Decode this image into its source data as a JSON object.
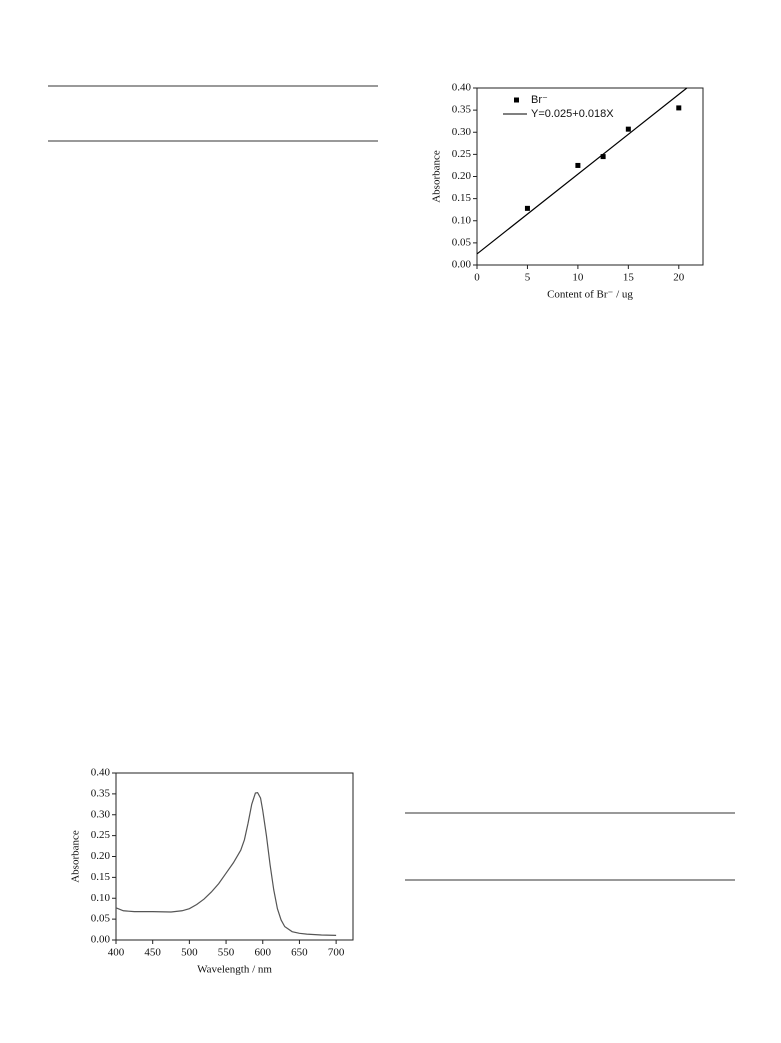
{
  "chart_data": [
    {
      "type": "scatter",
      "xlabel": "Content of Br⁻ / ug",
      "ylabel": "Absorbance",
      "xlim": [
        0,
        22.4
      ],
      "ylim": [
        0,
        0.4
      ],
      "xticks": [
        0,
        5,
        10,
        15,
        20
      ],
      "yticks": [
        {
          "value": 0,
          "label": "0.00"
        },
        {
          "value": 0.05,
          "label": "0.05"
        },
        {
          "value": 0.1,
          "label": "0.10"
        },
        {
          "value": 0.15,
          "label": "0.15"
        },
        {
          "value": 0.2,
          "label": "0.20"
        },
        {
          "value": 0.25,
          "label": "0.25"
        },
        {
          "value": 0.3,
          "label": "0.30"
        },
        {
          "value": 0.35,
          "label": "0.35"
        },
        {
          "value": 0.4,
          "label": "0.40"
        }
      ],
      "legend": "upper left",
      "series": [
        {
          "name": "Br⁻",
          "style": "points",
          "color": "#000000",
          "x": [
            5,
            10,
            12.5,
            15,
            20
          ],
          "values": [
            0.128,
            0.225,
            0.245,
            0.307,
            0.355
          ]
        },
        {
          "name": "Y=0.025+0.018X",
          "style": "line",
          "color": "#000000",
          "x": [
            0,
            20.8
          ],
          "values": [
            0.025,
            0.4
          ]
        }
      ]
    },
    {
      "type": "line",
      "xlabel": "Wavelength / nm",
      "ylabel": "Absorbance",
      "xlim": [
        400,
        723
      ],
      "ylim": [
        0,
        0.4
      ],
      "xticks": [
        400,
        450,
        500,
        550,
        600,
        650,
        700
      ],
      "yticks": [
        {
          "value": 0,
          "label": "0.00"
        },
        {
          "value": 0.05,
          "label": "0.05"
        },
        {
          "value": 0.1,
          "label": "0.10"
        },
        {
          "value": 0.15,
          "label": "0.15"
        },
        {
          "value": 0.2,
          "label": "0.20"
        },
        {
          "value": 0.25,
          "label": "0.25"
        },
        {
          "value": 0.3,
          "label": "0.30"
        },
        {
          "value": 0.35,
          "label": "0.35"
        },
        {
          "value": 0.4,
          "label": "0.40"
        }
      ],
      "series": [
        {
          "style": "line",
          "color": "#555555",
          "x": [
            400,
            410,
            425,
            450,
            475,
            490,
            500,
            510,
            520,
            530,
            540,
            550,
            560,
            570,
            575,
            580,
            585,
            590,
            593,
            597,
            600,
            605,
            610,
            615,
            620,
            625,
            630,
            640,
            650,
            660,
            680,
            700
          ],
          "values": [
            0.077,
            0.07,
            0.068,
            0.068,
            0.067,
            0.07,
            0.075,
            0.085,
            0.098,
            0.115,
            0.135,
            0.16,
            0.185,
            0.215,
            0.24,
            0.28,
            0.325,
            0.352,
            0.353,
            0.34,
            0.31,
            0.25,
            0.18,
            0.12,
            0.075,
            0.048,
            0.032,
            0.02,
            0.016,
            0.014,
            0.012,
            0.011
          ]
        }
      ]
    }
  ]
}
